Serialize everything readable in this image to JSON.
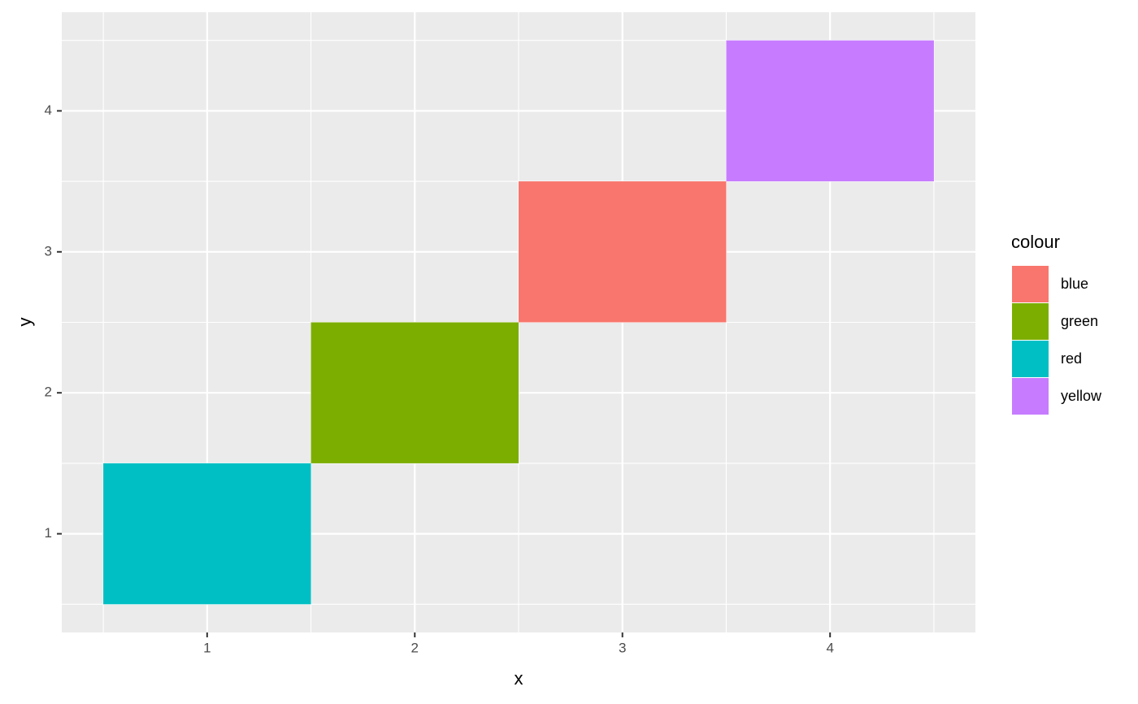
{
  "chart_data": {
    "type": "tile",
    "x_label": "x",
    "y_label": "y",
    "legend_title": "colour",
    "series": [
      {
        "name": "blue",
        "color": "#F8766D",
        "x": [
          3
        ],
        "values": [
          3
        ]
      },
      {
        "name": "green",
        "color": "#7CAE00",
        "x": [
          2
        ],
        "values": [
          2
        ]
      },
      {
        "name": "red",
        "color": "#00BFC4",
        "x": [
          1
        ],
        "values": [
          1
        ]
      },
      {
        "name": "yellow",
        "color": "#C77CFF",
        "x": [
          4
        ],
        "values": [
          4
        ]
      }
    ],
    "xlim": [
      0.3,
      4.7
    ],
    "ylim": [
      0.3,
      4.7
    ],
    "xticks": [
      1,
      2,
      3,
      4
    ],
    "yticks": [
      1,
      2,
      3,
      4
    ],
    "grid": true,
    "legend_position": "right"
  }
}
